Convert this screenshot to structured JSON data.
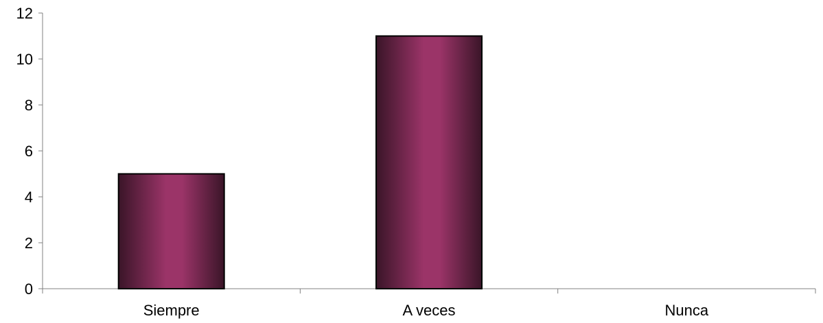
{
  "chart_data": {
    "type": "bar",
    "categories": [
      "Siempre",
      "A veces",
      "Nunca"
    ],
    "values": [
      5,
      11,
      0
    ],
    "ylim": [
      0,
      12
    ],
    "yticks": [
      0,
      2,
      4,
      6,
      8,
      10,
      12
    ],
    "ytick_labels": [
      "0",
      "2",
      "4",
      "6",
      "8",
      "10",
      "12"
    ],
    "grid": false,
    "legend": "none",
    "colors": {
      "bar_center": "#9b3468",
      "bar_edge": "#3a1528",
      "outline": "#000000",
      "axis": "#808080"
    }
  }
}
